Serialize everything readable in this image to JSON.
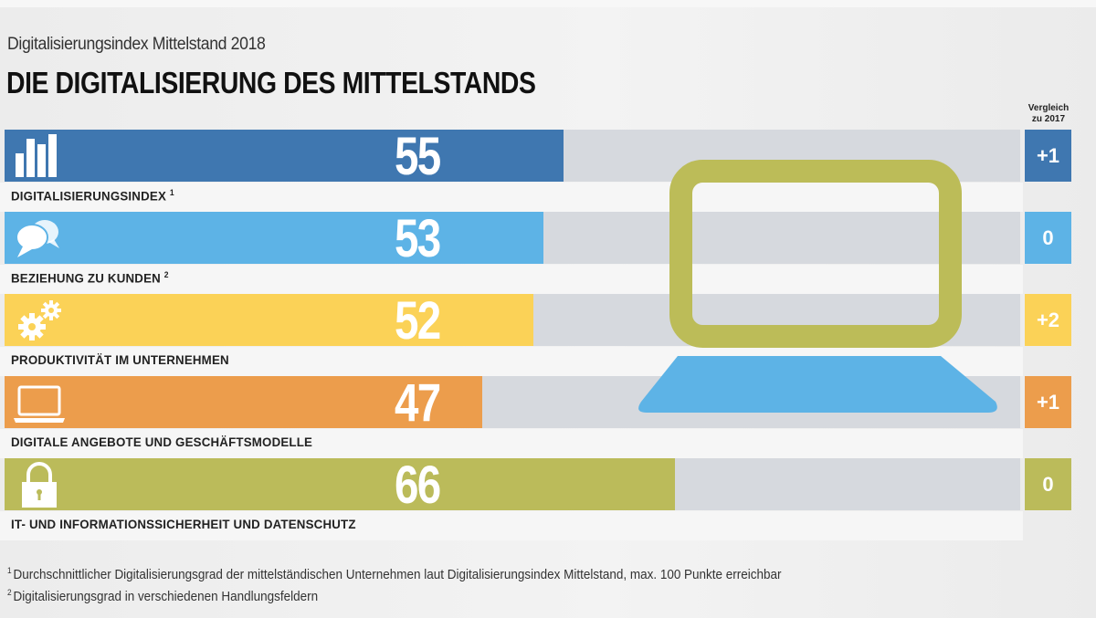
{
  "header": {
    "subtitle": "Digitalisierungsindex Mittelstand 2018",
    "title": "DIE DIGITALISIERUNG DES MITTELSTANDS",
    "comparison_heading_line1": "Vergleich",
    "comparison_heading_line2": "zu 2017"
  },
  "rows": [
    {
      "label": "DIGITALISIERUNGSINDEX",
      "sup": "1",
      "value": "55",
      "change": "+1",
      "icon": "bar-chart-icon",
      "color": "#3f77b0"
    },
    {
      "label": "BEZIEHUNG ZU KUNDEN",
      "sup": "2",
      "value": "53",
      "change": "0",
      "icon": "speech-bubbles-icon",
      "color": "#5db3e6"
    },
    {
      "label": "PRODUKTIVITÄT IM UNTERNEHMEN",
      "sup": "",
      "value": "52",
      "change": "+2",
      "icon": "gears-icon",
      "color": "#fbd257"
    },
    {
      "label": "DIGITALE ANGEBOTE UND GESCHÄFTSMODELLE",
      "sup": "",
      "value": "47",
      "change": "+1",
      "icon": "laptop-icon",
      "color": "#ec9d4c"
    },
    {
      "label": "IT- UND INFORMATIONSSICHERHEIT UND DATENSCHUTZ",
      "sup": "",
      "value": "66",
      "change": "0",
      "icon": "padlock-icon",
      "color": "#bbbb5a"
    }
  ],
  "footnotes": [
    {
      "sup": "1",
      "text": "Durchschnittlicher Digitalisierungsgrad der mittelständischen Unternehmen laut Digitalisierungsindex Mittelstand, max. 100 Punkte erreichbar"
    },
    {
      "sup": "2",
      "text": "Digitalisierungsgrad in verschiedenen Handlungsfeldern"
    }
  ],
  "illustration": {
    "icon": "laptop-illustration",
    "screen_color": "#bcbc58",
    "base_color": "#5db3e6"
  },
  "chart_data": {
    "type": "bar",
    "orientation": "horizontal",
    "title": "DIE DIGITALISIERUNG DES MITTELSTANDS",
    "subtitle": "Digitalisierungsindex Mittelstand 2018",
    "categories": [
      "DIGITALISIERUNGSINDEX",
      "BEZIEHUNG ZU KUNDEN",
      "PRODUKTIVITÄT IM UNTERNEHMEN",
      "DIGITALE ANGEBOTE UND GESCHÄFTSMODELLE",
      "IT- UND INFORMATIONSSICHERHEIT UND DATENSCHUTZ"
    ],
    "values": [
      55,
      53,
      52,
      47,
      66
    ],
    "change_vs_2017": [
      1,
      0,
      2,
      1,
      0
    ],
    "xlim": [
      0,
      100
    ],
    "xlabel": "",
    "ylabel": "",
    "grid": false,
    "legend": "none"
  }
}
